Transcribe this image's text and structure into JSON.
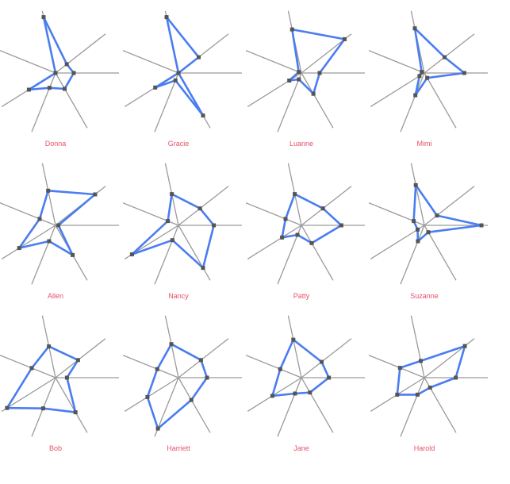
{
  "colors": {
    "axis": "#9a9a9a",
    "polygon": "#4a7df0",
    "marker": "#555555",
    "label": "#e8506c"
  },
  "chart_data": {
    "type": "radar",
    "grid": "false",
    "axis_angles_deg": [
      0,
      38,
      102,
      158,
      212,
      248,
      300
    ],
    "axis_max": 1,
    "charts": [
      {
        "name": "Donna",
        "values": [
          0.32,
          0.25,
          1.0,
          0.0,
          0.55,
          0.28,
          0.32
        ]
      },
      {
        "name": "Gracie",
        "values": [
          0.0,
          0.45,
          1.0,
          0.0,
          0.48,
          0.14,
          0.86
        ]
      },
      {
        "name": "Luanne",
        "values": [
          0.32,
          0.96,
          0.78,
          0.05,
          0.25,
          0.12,
          0.42
        ]
      },
      {
        "name": "Mimi",
        "values": [
          0.7,
          0.45,
          0.8,
          0.05,
          0.1,
          0.42,
          0.1
        ]
      },
      {
        "name": "Allen",
        "values": [
          0.05,
          0.88,
          0.62,
          0.3,
          0.75,
          0.3,
          0.6
        ]
      },
      {
        "name": "Nancy",
        "values": [
          0.62,
          0.48,
          0.56,
          0.2,
          0.96,
          0.28,
          0.86
        ]
      },
      {
        "name": "Patty",
        "values": [
          0.7,
          0.48,
          0.56,
          0.3,
          0.4,
          0.18,
          0.36
        ]
      },
      {
        "name": "Suzanne",
        "values": [
          1.0,
          0.28,
          0.72,
          0.2,
          0.14,
          0.3,
          0.14
        ]
      },
      {
        "name": "Bob",
        "values": [
          0.2,
          0.5,
          0.56,
          0.45,
          1.0,
          0.58,
          0.7
        ]
      },
      {
        "name": "Harriett",
        "values": [
          0.5,
          0.5,
          0.6,
          0.4,
          0.64,
          0.96,
          0.45
        ]
      },
      {
        "name": "Jane",
        "values": [
          0.48,
          0.45,
          0.68,
          0.4,
          0.6,
          0.3,
          0.3
        ]
      },
      {
        "name": "Harold",
        "values": [
          0.55,
          0.9,
          0.3,
          0.46,
          0.56,
          0.32,
          0.2
        ]
      }
    ]
  }
}
